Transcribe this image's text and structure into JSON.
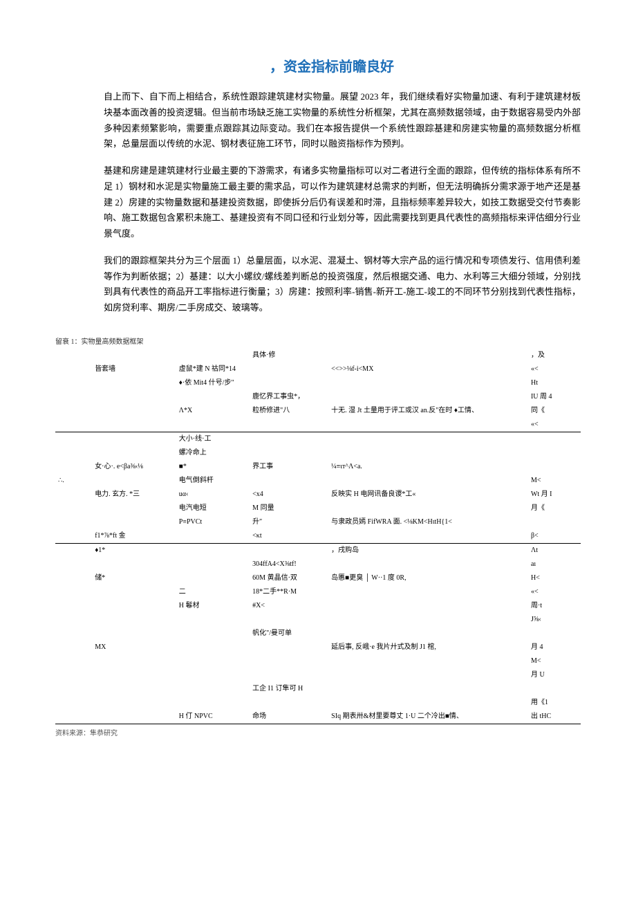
{
  "title": "，资金指标前瞻良好",
  "paragraphs": [
    "自上而下、自下而上相结合，系统性跟踪建筑建材实物量。展望 2023 年，我们继续看好实物量加速、有利于建筑建材板块基本面改善的投资逻辑。但当前市场缺乏施工实物量的系统性分析框架，尤其在高频数据领域，由于数据容易受内外部多种因素频繁影响，需要重点跟踪其边际变动。我们在本报告提供一个系统性跟踪基建和房建实物量的高频数据分析框架，总量层面以传统的水泥、钢材表征施工环节，同时以融资指标作为预判。",
    "基建和房建是建筑建材行业最主要的下游需求，有诸多实物量指标可以对二者进行全面的跟踪，但传统的指标体系有所不足 1）钢材和水泥是实物量施工最主要的需求品，可以作为建筑建材总需求的判断，但无法明确拆分需求源于地产还是基建 2）房建的实物量数据和基建投资数据，即使拆分后仍有误差和时滞，且指标频率差异较大，如技工数据受交付节奏影响、施工数据包含累积未施工、基建投资有不同口径和行业划分等，因此需要找到更具代表性的高频指标来评估细分行业景气度。",
    "我们的跟踪框架共分为三个层面 1）总量层面，以水泥、混凝土、钢材等大宗产品的运行情况和专项债发行、信用债利差等作为判断依据；2）基建：以大小螺纹/螺线差判断总的投资强度，然后根据交通、电力、水利等三大细分领域，分别找到具有代表性的商品开工率指标进行衡量；3）房建：按照利率-销售-新开工-施工-竣工的不同环节分别找到代表性指标，如房贷利率、期房/二手房成交、玻璃等。"
  ],
  "table_caption": "留衰 1：实物量高频数据框架",
  "table_rows": [
    {
      "a": "",
      "b": "",
      "c": "",
      "d": "具体·修",
      "e": "",
      "f": "，及",
      "border": false
    },
    {
      "a": "",
      "b": "皆套墙",
      "c": "虚鼠*建 N 祜同*14",
      "d": "",
      "e": "<<>>⅛f-i<MX",
      "f": "«<",
      "border": false
    },
    {
      "a": "",
      "b": "",
      "c": "♦·依 Mit4 什号/步\"",
      "d": "",
      "e": "",
      "f": "Ht",
      "border": false
    },
    {
      "a": "",
      "b": "",
      "c": "",
      "d": "鹿忆界工事虫*，",
      "e": "",
      "f": "IU 周 4",
      "border": false
    },
    {
      "a": "",
      "b": "",
      "c": "Λ*X",
      "d": "粒桥修进\"八",
      "e": "十无. 湿 Jt 土量用于评工或汉 an.反\"在时 ♦工情、",
      "f": "同《",
      "border": false
    },
    {
      "a": "",
      "b": "",
      "c": "",
      "d": "",
      "e": "",
      "f": "«<",
      "border": true
    },
    {
      "a": "",
      "b": "",
      "c": "大小·线·工",
      "d": "",
      "e": "",
      "f": "",
      "border": false
    },
    {
      "a": "",
      "b": "",
      "c": "螺冷命上",
      "d": "",
      "e": "",
      "f": "",
      "border": false
    },
    {
      "a": "",
      "b": "女·心·. e<βa⅜‹⅛",
      "c": "■*",
      "d": "界工事",
      "e": "¼≡ιт^Λ<a.",
      "f": "",
      "border": false
    },
    {
      "a": "∴.",
      "b": "",
      "c": "电气倒斜杆",
      "d": "",
      "e": "",
      "f": "M<",
      "border": false
    },
    {
      "a": "",
      "b": "电力. 玄方. *三",
      "c": "uα‹",
      "d": "<x4",
      "e": "反映实 H 电网讯备良谡*工«",
      "f": "Wt 月 I",
      "border": false
    },
    {
      "a": "",
      "b": "",
      "c": "电汽电短",
      "d": "M 同量",
      "e": "",
      "f": "月《",
      "border": false
    },
    {
      "a": "",
      "b": "",
      "c": "P≡PVCt",
      "d": "升″",
      "e": "与隶政员嫣 FifWRA 面. <⅛KM<HιtH{1<",
      "f": "",
      "border": false
    },
    {
      "a": "",
      "b": "f1*⅞*ft 金",
      "c": "",
      "d": "<κt",
      "e": "",
      "f": "β<",
      "border": true
    },
    {
      "a": "",
      "b": "♦1*",
      "c": "",
      "d": "",
      "e": "，戌购岛",
      "f": "Λt",
      "border": false
    },
    {
      "a": "",
      "b": "",
      "c": "",
      "d": "304ffA4<X⅜tf!",
      "e": "",
      "f": "aı",
      "border": false
    },
    {
      "a": "",
      "b": "储*",
      "c": "",
      "d": "60M 黄晶信·双",
      "e": "岛慝■更臭 │ W··1 度 0R,",
      "f": "H<",
      "border": false
    },
    {
      "a": "",
      "b": "",
      "c": "二",
      "d": "18*二手**R·M",
      "e": "",
      "f": "«<",
      "border": false
    },
    {
      "a": "",
      "b": "",
      "c": "H 鬈材",
      "d": "#X<",
      "e": "",
      "f": "周·t",
      "border": false
    },
    {
      "a": "",
      "b": "",
      "c": "",
      "d": "",
      "e": "",
      "f": "J⅝‹",
      "border": false
    },
    {
      "a": "",
      "b": "",
      "c": "",
      "d": "帆化\"/曼可单",
      "e": "",
      "f": "",
      "border": false
    },
    {
      "a": "",
      "b": "MX",
      "c": "",
      "d": "",
      "e": "延后事, 反峨·e 我片廾式及制 J1 棺,",
      "f": "月 4",
      "border": false
    },
    {
      "a": "",
      "b": "",
      "c": "",
      "d": "",
      "e": "",
      "f": "M<",
      "border": false
    },
    {
      "a": "",
      "b": "",
      "c": "",
      "d": "",
      "e": "",
      "f": "月 U",
      "border": false
    },
    {
      "a": "",
      "b": "",
      "c": "",
      "d": "工企 I1 订隼可 H",
      "e": "",
      "f": "",
      "border": false
    },
    {
      "a": "",
      "b": "",
      "c": "",
      "d": "",
      "e": "",
      "f": "用《1",
      "border": false
    },
    {
      "a": "",
      "b": "",
      "c": "H 仃 NPVC",
      "d": "命场",
      "e": "SIq 期表卅&材里要尊丈 1·U 二个冷出■情、",
      "f": "出 tHC",
      "border": true
    }
  ],
  "source": "资料来源：隼恭研究"
}
